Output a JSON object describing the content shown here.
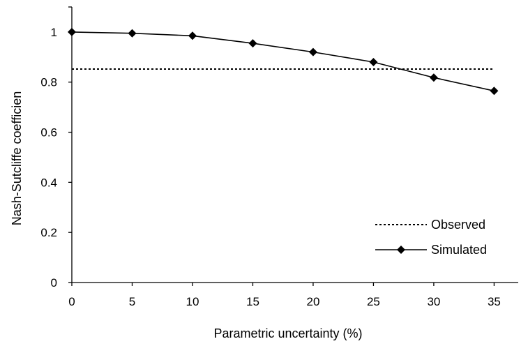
{
  "chart_data": {
    "type": "line",
    "title": "",
    "xlabel": "Parametric uncertainty (%)",
    "ylabel": "Nash-Sutcliffe coefficien",
    "xlim": [
      0,
      37
    ],
    "ylim": [
      0,
      1.1
    ],
    "x_ticks": [
      "0",
      "5",
      "10",
      "15",
      "20",
      "25",
      "30",
      "35"
    ],
    "y_ticks": [
      "0",
      "0.2",
      "0.4",
      "0.6",
      "0.8",
      "1"
    ],
    "grid": false,
    "legend_position": "bottom-right",
    "series": [
      {
        "name": "Observed",
        "style": "dotted",
        "color": "#000000",
        "x": [
          0,
          35
        ],
        "y": [
          0.852,
          0.852
        ]
      },
      {
        "name": "Simulated",
        "style": "solid",
        "marker": "diamond",
        "color": "#000000",
        "x": [
          0,
          5,
          10,
          15,
          20,
          25,
          30,
          35
        ],
        "y": [
          1.0,
          0.995,
          0.985,
          0.955,
          0.92,
          0.88,
          0.818,
          0.765
        ]
      }
    ]
  }
}
